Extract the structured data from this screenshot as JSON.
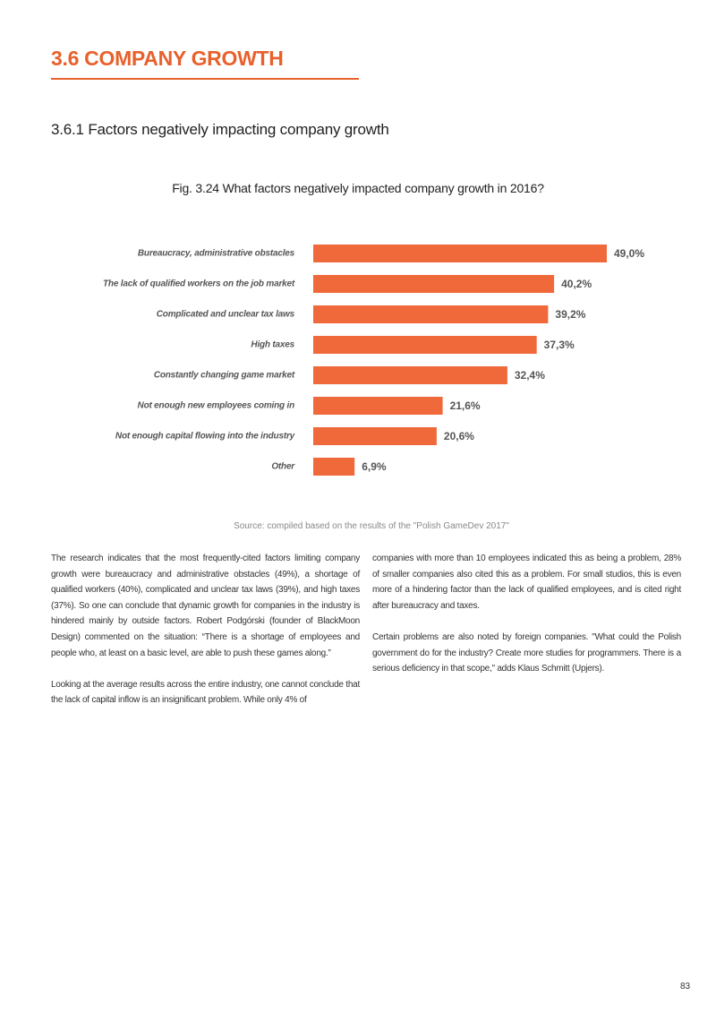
{
  "header": {
    "title": "3.6 COMPANY GROWTH"
  },
  "section_title": "3.6.1 Factors negatively impacting company growth",
  "chart_data": {
    "type": "hbar",
    "title": "Fig. 3.24 What factors negatively impacted company growth in 2016?",
    "categories": [
      "Bureaucracy, administrative obstacles",
      "The lack of qualified workers on the job market",
      "Complicated and unclear tax laws",
      "High taxes",
      "Constantly changing game market",
      "Not enough new employees coming in",
      "Not enough capital flowing into the industry",
      "Other"
    ],
    "values": [
      49.0,
      40.2,
      39.2,
      37.3,
      32.4,
      21.6,
      20.6,
      6.9
    ],
    "value_labels": [
      "49,0%",
      "40,2%",
      "39,2%",
      "37,3%",
      "32,4%",
      "21,6%",
      "20,6%",
      "6,9%"
    ],
    "color": "#f0693a",
    "source": "Source: compiled based on the results of the \"Polish GameDev 2017\""
  },
  "columns": [
    [
      "The research indicates that the most frequently-cited factors limiting company growth were bureaucracy and administrative obstacles (49%), a shortage of qualified workers (40%), complicated and unclear tax laws (39%), and high taxes (37%). So one can conclude that dynamic growth for companies in the industry is hindered mainly by outside factors. Robert Podgórski (founder of BlackMoon Design) commented on the situation: “There is a shortage of employees and people who, at least on a basic level, are able to push these games along.”",
      "Looking at the average results across the entire industry, one cannot conclude that the lack of capital inflow is an insignificant problem. While only 4% of"
    ],
    [
      "companies with more than 10 employees indicated this as being a problem, 28% of smaller companies also cited this as a problem. For small studios, this is even more of a hindering factor than the lack of qualified employees, and is cited right after bureaucracy and taxes.",
      "Certain problems are also noted by foreign companies. \"What could the Polish government do for the industry? Create more studies for programmers. There is a serious deficiency in that scope,\" adds Klaus Schmitt (Upjers)."
    ]
  ],
  "page_number": "83"
}
